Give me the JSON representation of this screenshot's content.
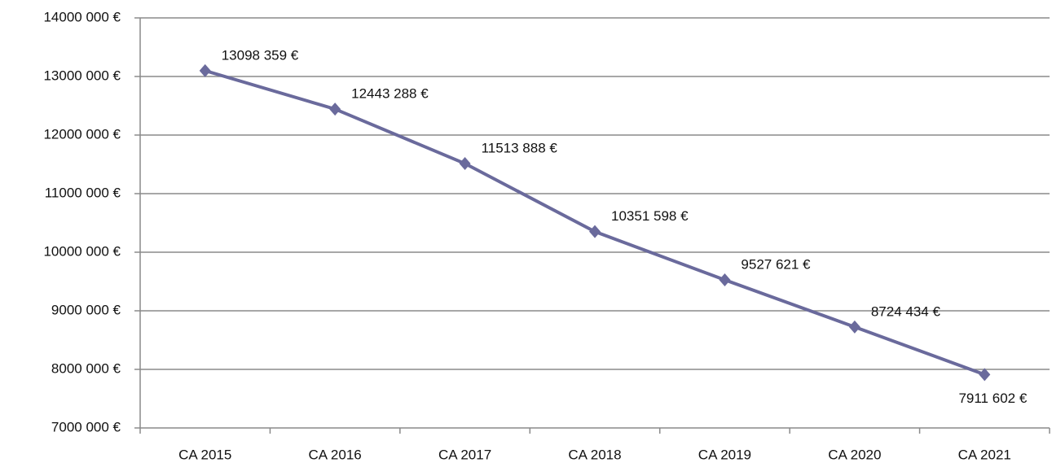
{
  "chart_data": {
    "type": "line",
    "categories": [
      "CA 2015",
      "CA 2016",
      "CA 2017",
      "CA 2018",
      "CA 2019",
      "CA 2020",
      "CA 2021"
    ],
    "values": [
      13098359,
      12443288,
      11513888,
      10351598,
      9527621,
      8724434,
      7911602
    ],
    "value_labels": [
      "13098 359 €",
      "12443 288 €",
      "11513 888 €",
      "10351 598 €",
      "9527 621 €",
      "8724 434 €",
      "7911 602 €"
    ],
    "color": "#6a6a9c",
    "ylim": [
      7000000,
      14000000
    ],
    "yticks": [
      {
        "value": 7000000,
        "label": "7000 000 €"
      },
      {
        "value": 8000000,
        "label": "8000 000 €"
      },
      {
        "value": 9000000,
        "label": "9000 000 €"
      },
      {
        "value": 10000000,
        "label": "10000 000 €"
      },
      {
        "value": 11000000,
        "label": "11000 000 €"
      },
      {
        "value": 12000000,
        "label": "12000 000 €"
      },
      {
        "value": 13000000,
        "label": "13000 000 €"
      },
      {
        "value": 14000000,
        "label": "14000 000 €"
      }
    ],
    "grid": true
  }
}
